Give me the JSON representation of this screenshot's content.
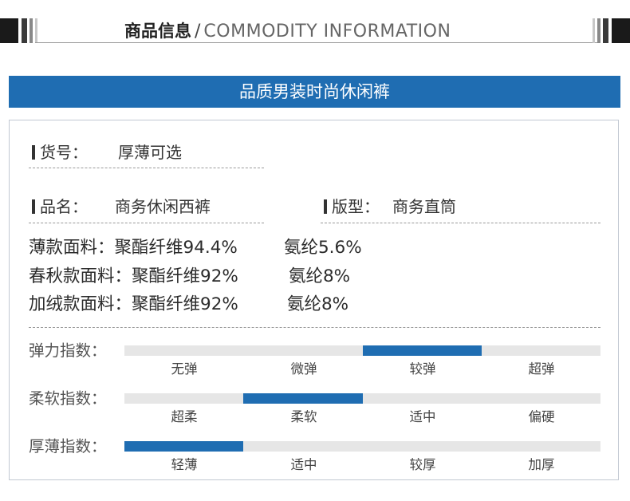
{
  "header": {
    "title_cn": "商品信息",
    "separator": "/",
    "title_en": "COMMODITY INFORMATION"
  },
  "banner": {
    "title": "品质男装时尚休闲裤"
  },
  "fields": {
    "item_no": {
      "label": "货号：",
      "value": "厚薄可选"
    },
    "name": {
      "label": "品名：",
      "value": "商务休闲西裤"
    },
    "fit": {
      "label": "版型：",
      "value": "商务直筒"
    }
  },
  "fabrics": [
    {
      "label": "薄款面料：",
      "polyester": "聚酯纤维94.4%",
      "spandex": "氨纶5.6%"
    },
    {
      "label": "春秋款面料：",
      "polyester": "聚酯纤维92%",
      "spandex": "氨纶8%"
    },
    {
      "label": "加绒款面料：",
      "polyester": "聚酯纤维92%",
      "spandex": "氨纶8%"
    }
  ],
  "indices": [
    {
      "label": "弹力指数：",
      "levels": [
        "无弹",
        "微弹",
        "较弹",
        "超弹"
      ],
      "selected": 2,
      "selected_label": "较弹"
    },
    {
      "label": "柔软指数：",
      "levels": [
        "超柔",
        "柔软",
        "适中",
        "偏硬"
      ],
      "selected": 1,
      "selected_label": "柔软"
    },
    {
      "label": "厚薄指数：",
      "levels": [
        "轻薄",
        "适中",
        "较厚",
        "加厚"
      ],
      "selected": 0,
      "selected_label": "轻薄"
    }
  ],
  "colors": {
    "accent": "#1f6db2",
    "track": "#e6e6e6",
    "frame_border": "#c2c9d2"
  }
}
